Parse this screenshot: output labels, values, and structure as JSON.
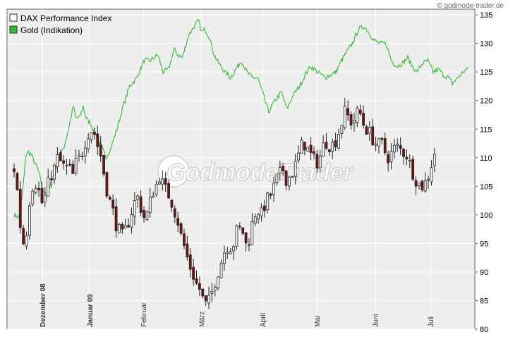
{
  "source": "© godmode-trader.de",
  "watermark": "GodmodeTrader",
  "colors": {
    "plot_bg": "#eeeeee",
    "gold_line": "#33bb33",
    "up_candle": "#ffffff",
    "down_candle": "#7a1010",
    "grid": "#ffffff"
  },
  "chart_data": {
    "type": "candlestick+line",
    "legend": [
      {
        "name": "DAX Performance Index",
        "color": "#ffffff"
      },
      {
        "name": "Gold (Indikation)",
        "color": "#33bb33"
      }
    ],
    "legend_placement": "top-left",
    "y_axis": {
      "position": "right",
      "ylim": [
        80,
        136
      ],
      "ticks": [
        80,
        85,
        90,
        95,
        100,
        105,
        110,
        115,
        120,
        125,
        130,
        135
      ]
    },
    "grid": true,
    "x_axis": {
      "labels": [
        {
          "label": "Dezember 08",
          "bold": true
        },
        {
          "label": "Januar 09",
          "bold": true
        },
        {
          "label": "Februar",
          "bold": false
        },
        {
          "label": "März",
          "bold": false
        },
        {
          "label": "April",
          "bold": false
        },
        {
          "label": "Mai",
          "bold": false
        },
        {
          "label": "Juni",
          "bold": false
        },
        {
          "label": "Juli",
          "bold": false
        }
      ],
      "label_index": [
        31,
        83,
        142,
        206,
        273,
        333,
        397,
        458
      ]
    },
    "gold_series": {
      "name": "Gold (Indikation)",
      "anchors": [
        [
          0,
          100
        ],
        [
          6,
          99.5
        ],
        [
          10,
          105
        ],
        [
          13,
          110.5
        ],
        [
          16,
          111
        ],
        [
          19,
          110.5
        ],
        [
          23,
          109
        ],
        [
          27,
          107.5
        ],
        [
          32,
          104
        ],
        [
          38,
          104
        ],
        [
          43,
          107
        ],
        [
          48,
          109
        ],
        [
          55,
          112
        ],
        [
          60,
          115
        ],
        [
          65,
          119
        ],
        [
          68,
          117
        ],
        [
          72,
          117
        ],
        [
          76,
          119
        ],
        [
          79,
          117
        ],
        [
          84,
          116
        ],
        [
          90,
          114
        ],
        [
          96,
          112
        ],
        [
          101,
          110
        ],
        [
          106,
          111.5
        ],
        [
          113,
          115
        ],
        [
          120,
          119
        ],
        [
          127,
          122.5
        ],
        [
          135,
          124
        ],
        [
          143,
          127
        ],
        [
          150,
          127
        ],
        [
          158,
          128
        ],
        [
          164,
          125
        ],
        [
          170,
          125.5
        ],
        [
          176,
          129
        ],
        [
          180,
          128
        ],
        [
          185,
          127.5
        ],
        [
          192,
          131.5
        ],
        [
          198,
          133
        ],
        [
          203,
          134
        ],
        [
          206,
          132
        ],
        [
          210,
          132.5
        ],
        [
          215,
          131
        ],
        [
          220,
          128
        ],
        [
          225,
          126.5
        ],
        [
          232,
          125
        ],
        [
          238,
          124
        ],
        [
          244,
          125.5
        ],
        [
          250,
          127
        ],
        [
          256,
          125
        ],
        [
          262,
          124
        ],
        [
          268,
          124
        ],
        [
          274,
          121
        ],
        [
          280,
          118
        ],
        [
          287,
          120
        ],
        [
          294,
          121.5
        ],
        [
          300,
          118.5
        ],
        [
          307,
          121
        ],
        [
          314,
          122.5
        ],
        [
          320,
          124.5
        ],
        [
          326,
          126
        ],
        [
          334,
          125
        ],
        [
          342,
          124
        ],
        [
          348,
          124.5
        ],
        [
          354,
          125
        ],
        [
          360,
          127
        ],
        [
          366,
          128.5
        ],
        [
          372,
          130
        ],
        [
          379,
          132.5
        ],
        [
          385,
          133
        ],
        [
          390,
          132
        ],
        [
          396,
          130.5
        ],
        [
          402,
          130
        ],
        [
          409,
          130
        ],
        [
          415,
          127
        ],
        [
          421,
          126
        ],
        [
          427,
          126.5
        ],
        [
          433,
          127.5
        ],
        [
          438,
          126
        ],
        [
          443,
          125
        ],
        [
          449,
          126.5
        ],
        [
          455,
          127
        ],
        [
          461,
          125
        ],
        [
          467,
          125.5
        ],
        [
          472,
          124.5
        ],
        [
          478,
          124
        ],
        [
          482,
          123
        ],
        [
          488,
          124
        ],
        [
          494,
          125
        ],
        [
          499,
          125.5
        ]
      ]
    },
    "dax_series": {
      "name": "DAX Performance Index",
      "anchors": [
        [
          0,
          108
        ],
        [
          3,
          105
        ],
        [
          6,
          99
        ],
        [
          9,
          96
        ],
        [
          12,
          94
        ],
        [
          15,
          100
        ],
        [
          18,
          104
        ],
        [
          22,
          106
        ],
        [
          26,
          105
        ],
        [
          30,
          102
        ],
        [
          33,
          102.5
        ],
        [
          37,
          105
        ],
        [
          40,
          107
        ],
        [
          44,
          108
        ],
        [
          48,
          110
        ],
        [
          52,
          109
        ],
        [
          56,
          108
        ],
        [
          60,
          108.5
        ],
        [
          64,
          106.5
        ],
        [
          68,
          109
        ],
        [
          72,
          110
        ],
        [
          76,
          111.5
        ],
        [
          80,
          114
        ],
        [
          84,
          115
        ],
        [
          88,
          114.5
        ],
        [
          92,
          112
        ],
        [
          96,
          110
        ],
        [
          100,
          106
        ],
        [
          104,
          103
        ],
        [
          108,
          101
        ],
        [
          112,
          98.5
        ],
        [
          116,
          97
        ],
        [
          120,
          96
        ],
        [
          124,
          98
        ],
        [
          128,
          100
        ],
        [
          132,
          102
        ],
        [
          136,
          103
        ],
        [
          140,
          101
        ],
        [
          144,
          99
        ],
        [
          148,
          101
        ],
        [
          152,
          104
        ],
        [
          156,
          105
        ],
        [
          160,
          107
        ],
        [
          164,
          105
        ],
        [
          168,
          104
        ],
        [
          172,
          103
        ],
        [
          176,
          101
        ],
        [
          180,
          99
        ],
        [
          184,
          96
        ],
        [
          188,
          94
        ],
        [
          192,
          91.5
        ],
        [
          196,
          90
        ],
        [
          200,
          88
        ],
        [
          204,
          87
        ],
        [
          208,
          85
        ],
        [
          212,
          84
        ],
        [
          216,
          85.5
        ],
        [
          220,
          88
        ],
        [
          224,
          90
        ],
        [
          228,
          92
        ],
        [
          232,
          94
        ],
        [
          236,
          95
        ],
        [
          240,
          94
        ],
        [
          244,
          97
        ],
        [
          248,
          97.5
        ],
        [
          252,
          97
        ],
        [
          256,
          94
        ],
        [
          260,
          97
        ],
        [
          264,
          100
        ],
        [
          268,
          101
        ],
        [
          272,
          100
        ],
        [
          276,
          102
        ],
        [
          280,
          103
        ],
        [
          284,
          104
        ],
        [
          288,
          106
        ],
        [
          292,
          107
        ],
        [
          296,
          108
        ],
        [
          300,
          106
        ],
        [
          304,
          107
        ],
        [
          308,
          108
        ],
        [
          312,
          110
        ],
        [
          316,
          112
        ],
        [
          320,
          112.5
        ],
        [
          324,
          111
        ],
        [
          328,
          110
        ],
        [
          332,
          109
        ],
        [
          336,
          110
        ],
        [
          340,
          112
        ],
        [
          344,
          113
        ],
        [
          348,
          112
        ],
        [
          352,
          112.5
        ],
        [
          356,
          114
        ],
        [
          360,
          116
        ],
        [
          364,
          118
        ],
        [
          368,
          117
        ],
        [
          372,
          116
        ],
        [
          376,
          117.5
        ],
        [
          380,
          118
        ],
        [
          384,
          116
        ],
        [
          388,
          115
        ],
        [
          392,
          114
        ],
        [
          396,
          113
        ],
        [
          400,
          112
        ],
        [
          404,
          112.5
        ],
        [
          408,
          111
        ],
        [
          412,
          110
        ],
        [
          416,
          111
        ],
        [
          420,
          112
        ],
        [
          424,
          111.5
        ],
        [
          428,
          111
        ],
        [
          432,
          110.5
        ],
        [
          436,
          108.5
        ],
        [
          440,
          107
        ],
        [
          444,
          105.5
        ],
        [
          448,
          105
        ],
        [
          452,
          105.5
        ],
        [
          456,
          107
        ],
        [
          460,
          109.5
        ],
        [
          464,
          112
        ]
      ]
    }
  }
}
